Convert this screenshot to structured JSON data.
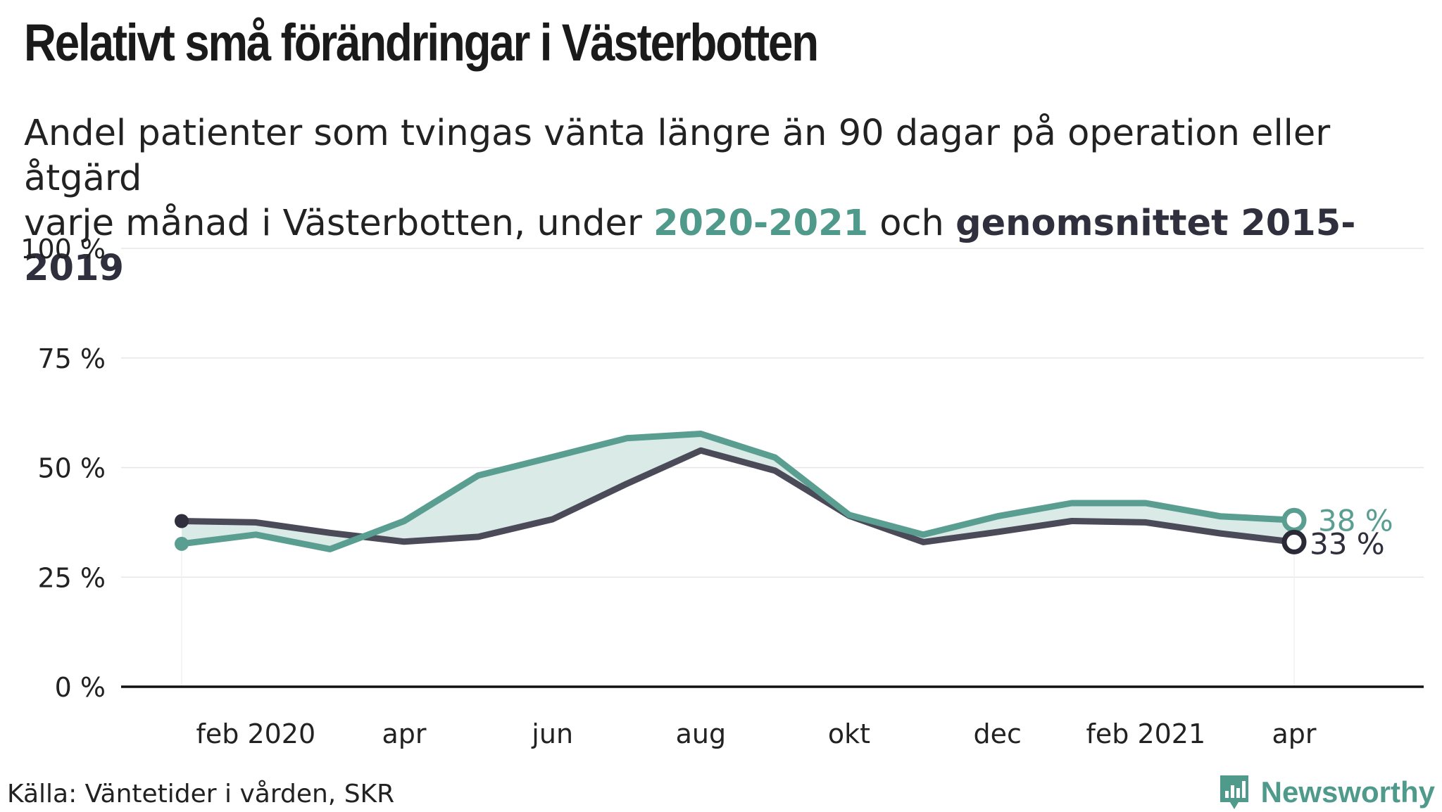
{
  "title": "Relativt små förändringar i Västerbotten",
  "subtitle": {
    "line1": "Andel patienter som tvingas vänta längre än 90 dagar på operation eller åtgärd",
    "line2_prefix": "varje månad i Västerbotten, under ",
    "series_a_label": "2020-2021",
    "mid": " och ",
    "series_b_label": "genomsnittet 2015-2019"
  },
  "source": "Källa: Väntetider i vården, SKR",
  "brand": {
    "name": "Newsworthy",
    "icon": "newsworthy-logo-icon"
  },
  "colors": {
    "series_a": "#5a9e91",
    "series_b": "#4a4a58",
    "fill": "#d8e9e5",
    "grid": "#e6e6e6",
    "axis": "#111111"
  },
  "chart_data": {
    "type": "line",
    "x": [
      "2020-01",
      "2020-02",
      "2020-03",
      "2020-04",
      "2020-05",
      "2020-06",
      "2020-07",
      "2020-08",
      "2020-09",
      "2020-10",
      "2020-11",
      "2020-12",
      "2021-01",
      "2021-02",
      "2021-03",
      "2021-04"
    ],
    "x_tick_labels": [
      {
        "x": "2020-02",
        "label": "feb 2020"
      },
      {
        "x": "2020-04",
        "label": "apr"
      },
      {
        "x": "2020-06",
        "label": "jun"
      },
      {
        "x": "2020-08",
        "label": "aug"
      },
      {
        "x": "2020-10",
        "label": "okt"
      },
      {
        "x": "2020-12",
        "label": "dec"
      },
      {
        "x": "2021-02",
        "label": "feb 2021"
      },
      {
        "x": "2021-04",
        "label": "apr"
      }
    ],
    "y_ticks": [
      0,
      25,
      50,
      75,
      100
    ],
    "y_tick_labels": [
      "0 %",
      "25 %",
      "50 %",
      "75 %",
      "100 %"
    ],
    "ylim": [
      0,
      100
    ],
    "grid": true,
    "series": [
      {
        "key": "a",
        "values": [
          32.6,
          34.7,
          31.4,
          37.8,
          48.2,
          52.4,
          56.7,
          57.7,
          52.3,
          39.2,
          34.7,
          38.9,
          41.9,
          41.9,
          38.9,
          38.0
        ],
        "end_label": "38 %"
      },
      {
        "key": "b",
        "values": [
          37.8,
          37.5,
          35.1,
          33.1,
          34.2,
          38.2,
          46.3,
          53.9,
          49.3,
          39.0,
          33.0,
          35.3,
          37.8,
          37.5,
          35.0,
          33.0
        ],
        "end_label": "33 %"
      }
    ]
  }
}
